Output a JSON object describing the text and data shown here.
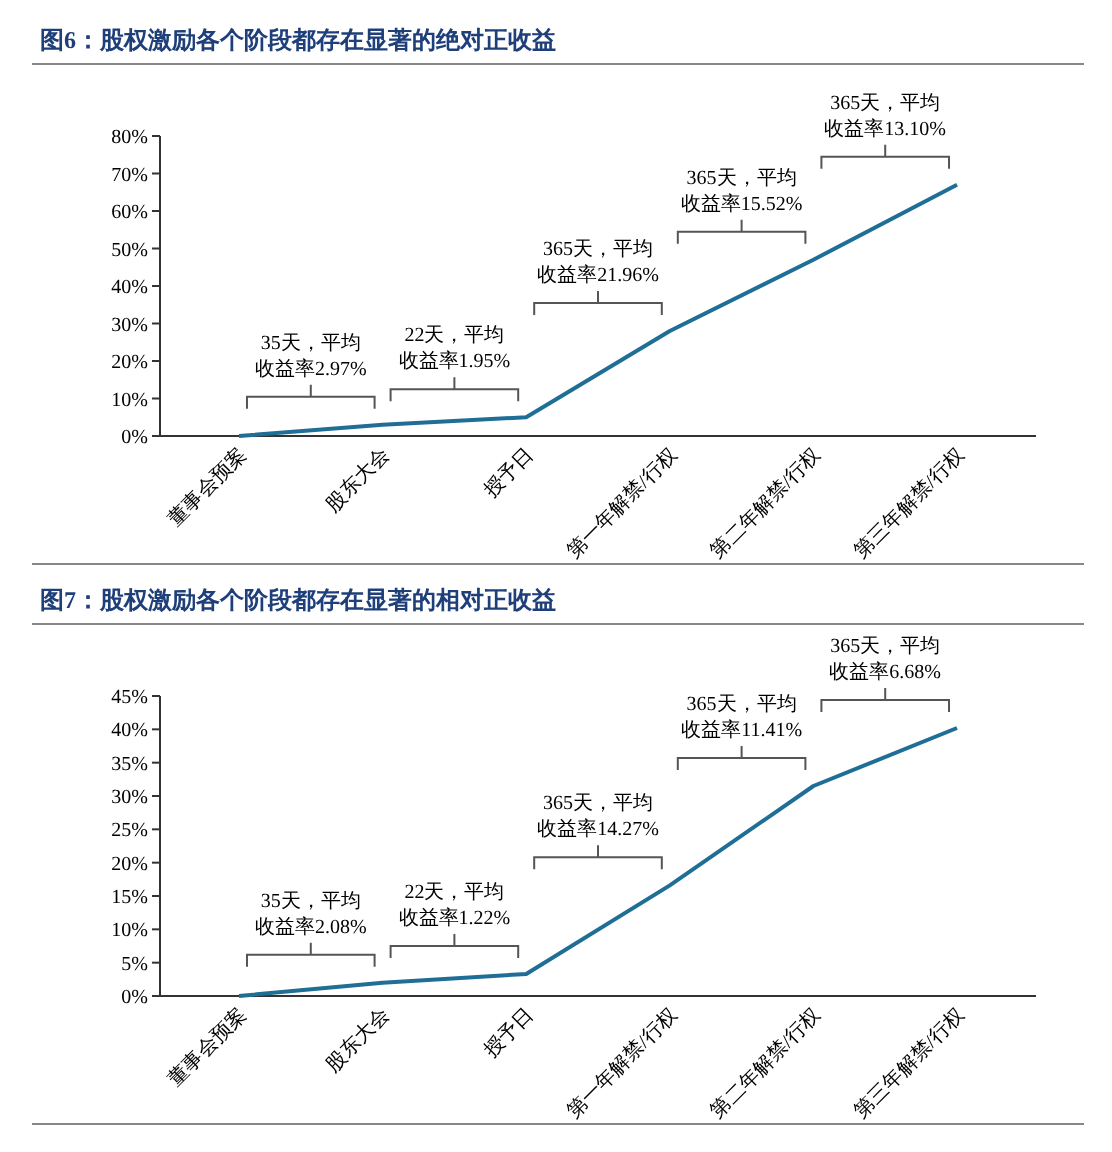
{
  "chart_data": [
    {
      "type": "line",
      "title": "图6：股权激励各个阶段都存在显著的绝对正收益",
      "categories": [
        "董事会预案",
        "股东大会",
        "授予日",
        "第一年解禁/行权",
        "第二年解禁/行权",
        "第三年解禁/行权"
      ],
      "series": [
        {
          "color": "#1f6e96",
          "values": [
            0,
            3,
            5,
            28,
            47,
            67
          ]
        }
      ],
      "ylim": [
        0,
        80
      ],
      "yticks": [
        {
          "value": 0,
          "label": "0%"
        },
        {
          "value": 10,
          "label": "10%"
        },
        {
          "value": 20,
          "label": "20%"
        },
        {
          "value": 30,
          "label": "30%"
        },
        {
          "value": 40,
          "label": "40%"
        },
        {
          "value": 50,
          "label": "50%"
        },
        {
          "value": 60,
          "label": "60%"
        },
        {
          "value": 70,
          "label": "70%"
        },
        {
          "value": 80,
          "label": "80%"
        }
      ],
      "grid": false,
      "marker": "none",
      "line_style": "solid",
      "annotations": [
        "35天，平均收益率2.97%",
        "22天，平均收益率1.95%",
        "365天，平均收益率21.96%",
        "365天，平均收益率15.52%",
        "365天，平均收益率13.10%"
      ]
    },
    {
      "type": "line",
      "title": "图7：股权激励各个阶段都存在显著的相对正收益",
      "categories": [
        "董事会预案",
        "股东大会",
        "授予日",
        "第一年解禁/行权",
        "第二年解禁/行权",
        "第三年解禁/行权"
      ],
      "series": [
        {
          "color": "#1f6e96",
          "values": [
            0,
            2,
            3.3,
            16.6,
            31.5,
            40.2
          ]
        }
      ],
      "ylim": [
        0,
        45
      ],
      "yticks": [
        {
          "value": 0,
          "label": "0%"
        },
        {
          "value": 5,
          "label": "5%"
        },
        {
          "value": 10,
          "label": "10%"
        },
        {
          "value": 15,
          "label": "15%"
        },
        {
          "value": 20,
          "label": "20%"
        },
        {
          "value": 25,
          "label": "25%"
        },
        {
          "value": 30,
          "label": "30%"
        },
        {
          "value": 35,
          "label": "35%"
        },
        {
          "value": 40,
          "label": "40%"
        },
        {
          "value": 45,
          "label": "45%"
        }
      ],
      "grid": false,
      "marker": "none",
      "line_style": "solid",
      "annotations": [
        "35天，平均收益率2.08%",
        "22天，平均收益率1.22%",
        "365天，平均收益率14.27%",
        "365天，平均收益率11.41%",
        "365天，平均收益率6.68%"
      ]
    }
  ]
}
